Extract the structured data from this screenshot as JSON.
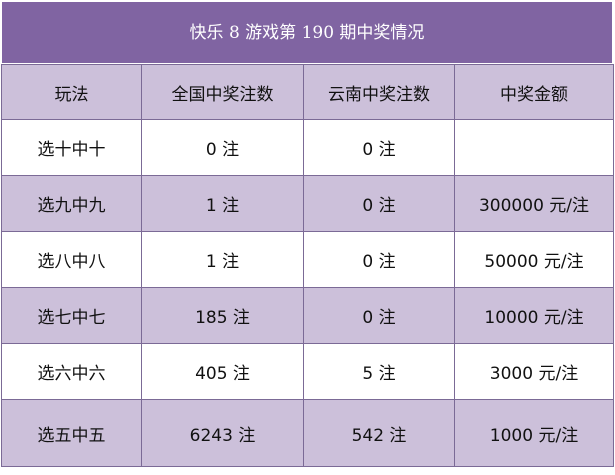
{
  "title": "快乐 8 游戏第 190 期中奖情况",
  "headers": [
    "玩法",
    "全国中奖注数",
    "云南中奖注数",
    "中奖金额"
  ],
  "rows": [
    {
      "play": "选十中十",
      "national": "0 注",
      "yunnan": "0 注",
      "amount": ""
    },
    {
      "play": "选九中九",
      "national": "1 注",
      "yunnan": "0 注",
      "amount": "300000 元/注"
    },
    {
      "play": "选八中八",
      "national": "1 注",
      "yunnan": "0 注",
      "amount": "50000 元/注"
    },
    {
      "play": "选七中七",
      "national": "185 注",
      "yunnan": "0 注",
      "amount": "10000 元/注"
    },
    {
      "play": "选六中六",
      "national": "405 注",
      "yunnan": "5 注",
      "amount": "3000 元/注"
    },
    {
      "play": "选五中五",
      "national": "6243 注",
      "yunnan": "542 注",
      "amount": "1000 元/注"
    }
  ],
  "colors": {
    "title_bg": "#8064a2",
    "band": "#ccc0da",
    "border": "#7b6a96"
  }
}
